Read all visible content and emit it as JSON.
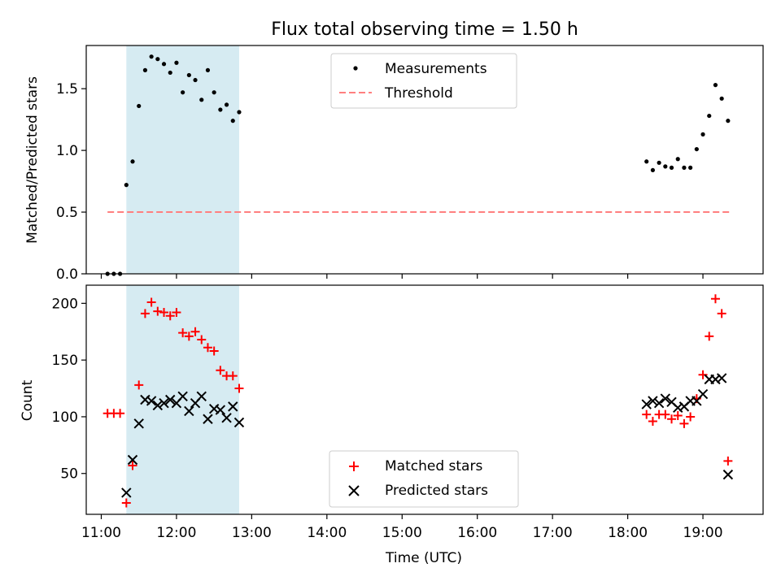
{
  "title": "Flux total observing time = 1.50 h",
  "colors": {
    "shade": "#add8e6",
    "measurement": "#000000",
    "threshold": "#ff7f7f",
    "matched": "#ff0000",
    "predicted": "#000000"
  },
  "chart_data": [
    {
      "type": "scatter",
      "panel": "top",
      "ylabel": "Matched/Predicted stars",
      "xlim": [
        "10:48",
        "19:48"
      ],
      "ylim": [
        0,
        1.85
      ],
      "yticks": [
        "0.0",
        "0.5",
        "1.0",
        "1.5"
      ],
      "grid": false,
      "legend_position": "top-center",
      "legend": [
        "Measurements",
        "Threshold"
      ],
      "shaded_interval": [
        "11:20",
        "12:50"
      ],
      "threshold": {
        "name": "Threshold",
        "value": 0.5,
        "x_range": [
          "11:05",
          "19:22"
        ],
        "style": "dashed"
      },
      "series": [
        {
          "name": "Measurements",
          "marker": "dot",
          "points": [
            [
              "11:05",
              0
            ],
            [
              "11:10",
              0
            ],
            [
              "11:15",
              0
            ],
            [
              "11:20",
              0.72
            ],
            [
              "11:25",
              0.91
            ],
            [
              "11:30",
              1.36
            ],
            [
              "11:35",
              1.65
            ],
            [
              "11:40",
              1.76
            ],
            [
              "11:45",
              1.74
            ],
            [
              "11:50",
              1.7
            ],
            [
              "11:55",
              1.63
            ],
            [
              "12:00",
              1.71
            ],
            [
              "12:05",
              1.47
            ],
            [
              "12:10",
              1.61
            ],
            [
              "12:15",
              1.57
            ],
            [
              "12:20",
              1.41
            ],
            [
              "12:25",
              1.65
            ],
            [
              "12:30",
              1.47
            ],
            [
              "12:35",
              1.33
            ],
            [
              "12:40",
              1.37
            ],
            [
              "12:45",
              1.24
            ],
            [
              "12:50",
              1.31
            ],
            [
              "18:15",
              0.91
            ],
            [
              "18:20",
              0.84
            ],
            [
              "18:25",
              0.9
            ],
            [
              "18:30",
              0.87
            ],
            [
              "18:35",
              0.86
            ],
            [
              "18:40",
              0.93
            ],
            [
              "18:45",
              0.86
            ],
            [
              "18:50",
              0.86
            ],
            [
              "18:55",
              1.01
            ],
            [
              "19:00",
              1.13
            ],
            [
              "19:05",
              1.28
            ],
            [
              "19:10",
              1.53
            ],
            [
              "19:15",
              1.42
            ],
            [
              "19:20",
              1.24
            ]
          ]
        }
      ]
    },
    {
      "type": "scatter",
      "panel": "bottom",
      "xlabel": "Time (UTC)",
      "ylabel": "Count",
      "xlim": [
        "10:48",
        "19:48"
      ],
      "ylim": [
        14,
        216
      ],
      "xticks": [
        "11:00",
        "12:00",
        "13:00",
        "14:00",
        "15:00",
        "16:00",
        "17:00",
        "18:00",
        "19:00"
      ],
      "yticks": [
        "50",
        "100",
        "150",
        "200"
      ],
      "grid": false,
      "legend_position": "bottom-center",
      "legend": [
        "Matched stars",
        "Predicted stars"
      ],
      "shaded_interval": [
        "11:20",
        "12:50"
      ],
      "series": [
        {
          "name": "Matched stars",
          "marker": "plus",
          "points": [
            [
              "11:05",
              103
            ],
            [
              "11:10",
              103
            ],
            [
              "11:15",
              103
            ],
            [
              "11:20",
              24
            ],
            [
              "11:25",
              57
            ],
            [
              "11:30",
              128
            ],
            [
              "11:35",
              191
            ],
            [
              "11:40",
              201
            ],
            [
              "11:45",
              193
            ],
            [
              "11:50",
              192
            ],
            [
              "11:55",
              189
            ],
            [
              "12:00",
              192
            ],
            [
              "12:05",
              174
            ],
            [
              "12:10",
              171
            ],
            [
              "12:15",
              175
            ],
            [
              "12:20",
              168
            ],
            [
              "12:25",
              161
            ],
            [
              "12:30",
              158
            ],
            [
              "12:35",
              141
            ],
            [
              "12:40",
              136
            ],
            [
              "12:45",
              136
            ],
            [
              "12:50",
              125
            ],
            [
              "18:15",
              102
            ],
            [
              "18:20",
              96
            ],
            [
              "18:25",
              102
            ],
            [
              "18:30",
              102
            ],
            [
              "18:35",
              98
            ],
            [
              "18:40",
              101
            ],
            [
              "18:45",
              94
            ],
            [
              "18:50",
              100
            ],
            [
              "18:55",
              116
            ],
            [
              "19:00",
              137
            ],
            [
              "19:05",
              171
            ],
            [
              "19:10",
              204
            ],
            [
              "19:15",
              191
            ],
            [
              "19:20",
              61
            ]
          ]
        },
        {
          "name": "Predicted stars",
          "marker": "x",
          "points": [
            [
              "11:20",
              33
            ],
            [
              "11:25",
              62
            ],
            [
              "11:30",
              94
            ],
            [
              "11:35",
              115
            ],
            [
              "11:40",
              114
            ],
            [
              "11:45",
              110
            ],
            [
              "11:50",
              112
            ],
            [
              "11:55",
              115
            ],
            [
              "12:00",
              112
            ],
            [
              "12:05",
              118
            ],
            [
              "12:10",
              105
            ],
            [
              "12:15",
              112
            ],
            [
              "12:20",
              118
            ],
            [
              "12:25",
              98
            ],
            [
              "12:30",
              107
            ],
            [
              "12:35",
              106
            ],
            [
              "12:40",
              99
            ],
            [
              "12:45",
              109
            ],
            [
              "12:50",
              95
            ],
            [
              "18:15",
              111
            ],
            [
              "18:20",
              114
            ],
            [
              "18:25",
              112
            ],
            [
              "18:30",
              116
            ],
            [
              "18:35",
              113
            ],
            [
              "18:40",
              108
            ],
            [
              "18:45",
              109
            ],
            [
              "18:50",
              114
            ],
            [
              "18:55",
              114
            ],
            [
              "19:00",
              120
            ],
            [
              "19:05",
              133
            ],
            [
              "19:10",
              133
            ],
            [
              "19:15",
              134
            ],
            [
              "19:20",
              49
            ]
          ]
        }
      ]
    }
  ]
}
